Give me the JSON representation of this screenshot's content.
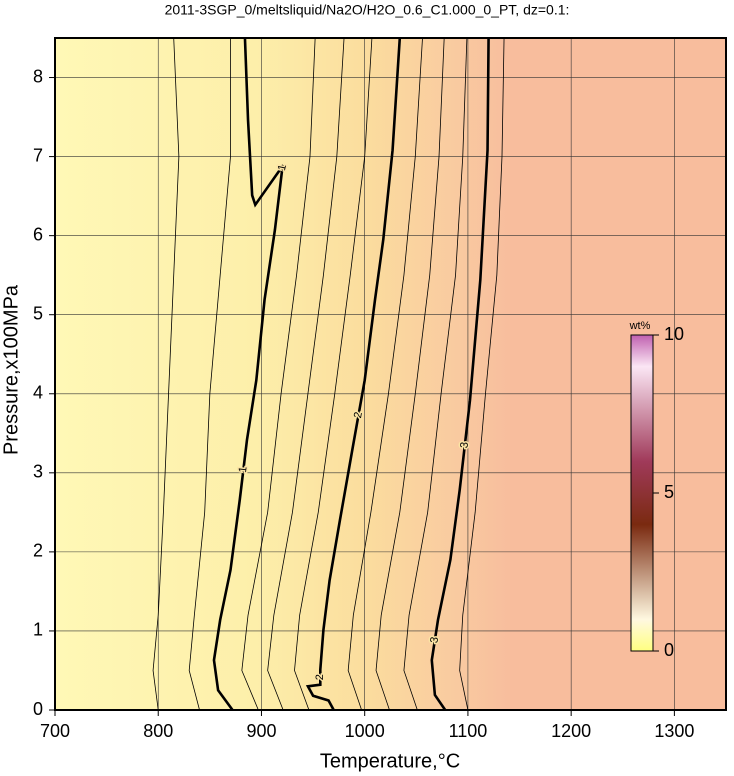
{
  "chart_data": {
    "type": "contour",
    "title": "2011-3SGP_0/meltsliquid/Na2O/H2O_0.6_C1.000_0_PT, dz=0.1:",
    "x_label": "Temperature,°C",
    "y_label": "Pressure,x100MPa",
    "xlim": [
      700,
      1350
    ],
    "ylim": [
      0,
      8.5
    ],
    "xticks": [
      700,
      800,
      900,
      1000,
      1100,
      1200,
      1300
    ],
    "yticks": [
      0,
      1,
      2,
      3,
      4,
      5,
      6,
      7,
      8
    ],
    "grid": true,
    "colorbar": {
      "label": "wt%",
      "lim": [
        0,
        10
      ],
      "ticks": [
        0,
        5,
        10
      ]
    },
    "series": [
      {
        "level": 1,
        "major": true,
        "x": [
          884,
          887,
          891,
          894,
          921,
          920,
          913,
          903,
          895,
          886,
          879,
          870,
          860,
          854,
          858,
          872
        ],
        "y": [
          8.5,
          7.46,
          6.51,
          6.39,
          6.89,
          6.83,
          6.07,
          5.19,
          4.17,
          3.42,
          2.66,
          1.77,
          1.14,
          0.63,
          0.25,
          0
        ]
      },
      {
        "level": 2,
        "major": true,
        "x": [
          1034,
          1027,
          1018,
          1010,
          1000,
          988,
          976,
          966,
          960,
          957,
          957,
          945,
          950,
          965,
          970
        ],
        "y": [
          8.5,
          7.08,
          5.95,
          5.19,
          4.17,
          3.29,
          2.4,
          1.64,
          1.01,
          0.51,
          0.32,
          0.3,
          0.18,
          0.12,
          0
        ]
      },
      {
        "level": 3,
        "major": true,
        "x": [
          1120,
          1119,
          1112,
          1102,
          1092,
          1083,
          1071,
          1065,
          1068,
          1078
        ],
        "y": [
          8.5,
          7.08,
          5.44,
          3.92,
          2.78,
          1.9,
          1.14,
          0.63,
          0.19,
          0
        ]
      },
      {
        "level": 0.5,
        "major": false,
        "x": [
          815,
          820,
          815,
          810,
          805,
          800,
          795,
          800
        ],
        "y": [
          8.5,
          7,
          5.5,
          4,
          2.5,
          1.2,
          0.5,
          0
        ]
      },
      {
        "level": 0.75,
        "major": false,
        "x": [
          870,
          870,
          860,
          850,
          845,
          835,
          830,
          840
        ],
        "y": [
          8.5,
          7,
          5.5,
          4,
          2.5,
          1.2,
          0.5,
          0
        ]
      },
      {
        "level": 1.25,
        "major": false,
        "x": [
          952,
          947,
          934,
          919,
          906,
          887,
          881,
          897
        ],
        "y": [
          8.5,
          7,
          5.5,
          4,
          2.5,
          1.2,
          0.5,
          0
        ]
      },
      {
        "level": 1.5,
        "major": false,
        "x": [
          980,
          973,
          960,
          945,
          930,
          912,
          906,
          921
        ],
        "y": [
          8.5,
          7,
          5.5,
          4,
          2.5,
          1.2,
          0.5,
          0
        ]
      },
      {
        "level": 1.75,
        "major": false,
        "x": [
          1007,
          1000,
          986,
          971,
          955,
          937,
          932,
          946
        ],
        "y": [
          8.5,
          7,
          5.5,
          4,
          2.5,
          1.2,
          0.5,
          0
        ]
      },
      {
        "level": 2.25,
        "major": false,
        "x": [
          1056,
          1049,
          1038,
          1023,
          1006,
          989,
          984,
          997
        ],
        "y": [
          8.5,
          7,
          5.5,
          4,
          2.5,
          1.2,
          0.5,
          0
        ]
      },
      {
        "level": 2.5,
        "major": false,
        "x": [
          1077,
          1072,
          1063,
          1049,
          1034,
          1016,
          1011,
          1024
        ],
        "y": [
          8.5,
          7,
          5.5,
          4,
          2.5,
          1.2,
          0.5,
          0
        ]
      },
      {
        "level": 2.75,
        "major": false,
        "x": [
          1099,
          1095,
          1088,
          1074,
          1061,
          1043,
          1038,
          1051
        ],
        "y": [
          8.5,
          7,
          5.5,
          4,
          2.5,
          1.2,
          0.5,
          0
        ]
      },
      {
        "level": 3.25,
        "major": false,
        "x": [
          1135,
          1133,
          1128,
          1117,
          1107,
          1095,
          1092,
          1100
        ],
        "y": [
          8.5,
          7,
          5.5,
          4,
          2.5,
          1.2,
          0.5,
          0
        ]
      }
    ]
  }
}
